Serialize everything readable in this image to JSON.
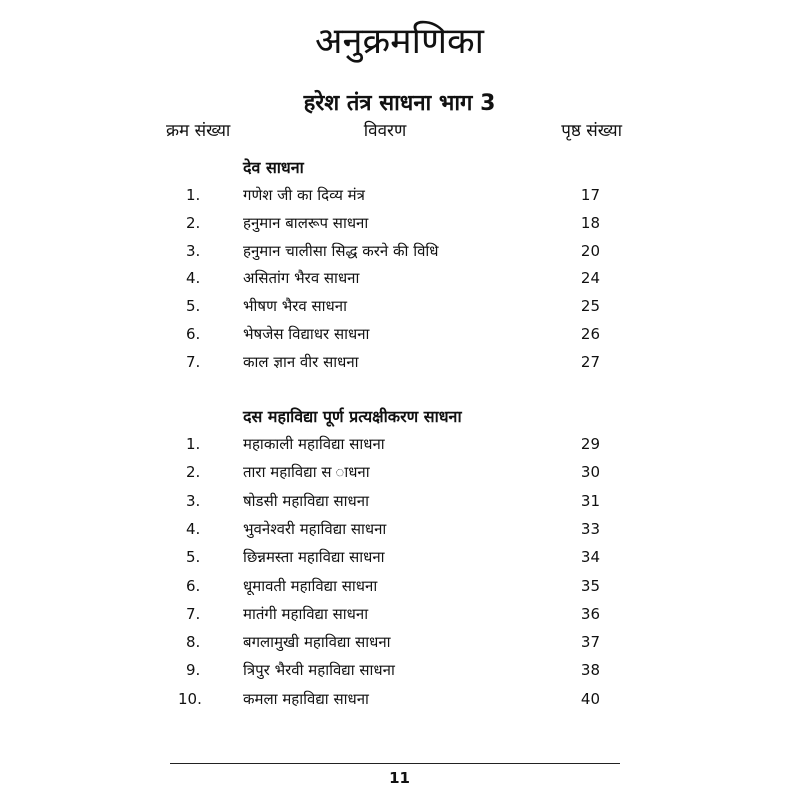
{
  "title": "अनुक्रमणिका",
  "subtitle": "हरेश तंत्र साधना भाग 3",
  "columns": {
    "number": "क्रम संख्या",
    "description": "विवरण",
    "page": "पृष्ठ संख्या"
  },
  "sections": [
    {
      "heading": "देव साधना",
      "items": [
        {
          "num": "1.",
          "text": "गणेश जी का दिव्य मंत्र",
          "page": "17"
        },
        {
          "num": "2.",
          "text": "हनुमान बालरूप साधना",
          "page": "18"
        },
        {
          "num": "3.",
          "text": "हनुमान चालीसा सिद्ध करने की विधि",
          "page": "20"
        },
        {
          "num": "4.",
          "text": "असितांग भैरव साधना",
          "page": "24"
        },
        {
          "num": "5.",
          "text": "भीषण भैरव साधना",
          "page": "25"
        },
        {
          "num": "6.",
          "text": "भेषजेस विद्याधर साधना",
          "page": "26"
        },
        {
          "num": "7.",
          "text": "काल ज्ञान वीर साधना",
          "page": "27"
        }
      ]
    },
    {
      "heading": "दस महाविद्या पूर्ण प्रत्यक्षीकरण साधना",
      "items": [
        {
          "num": "1.",
          "text": "महाकाली महाविद्या साधना",
          "page": "29"
        },
        {
          "num": "2.",
          "text": "तारा महाविद्या स ाधना",
          "page": "30"
        },
        {
          "num": "3.",
          "text": " षोडसी महाविद्या साधना",
          "page": "31"
        },
        {
          "num": "4.",
          "text": "भुवनेश्वरी महाविद्या साधना",
          "page": "33"
        },
        {
          "num": "5.",
          "text": "छिन्नमस्ता महाविद्या साधना",
          "page": "34"
        },
        {
          "num": "6.",
          "text": "धूमावती महाविद्या साधना",
          "page": "35"
        },
        {
          "num": "7.",
          "text": "मातंगी महाविद्या साधना",
          "page": "36"
        },
        {
          "num": "8.",
          "text": "बगलामुखी महाविद्या साधना",
          "page": "37"
        },
        {
          "num": "9.",
          "text": "त्रिपुर भैरवी महाविद्या साधना",
          "page": "38"
        },
        {
          "num": "10.",
          "text": "कमला महाविद्या साधना",
          "page": "40"
        }
      ]
    }
  ],
  "page_number": "11"
}
